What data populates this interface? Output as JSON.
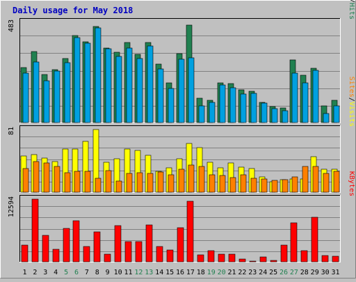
{
  "chart_data": {
    "type": "bar",
    "title": "Daily usage for May 2018",
    "categories": [
      "1",
      "2",
      "3",
      "4",
      "5",
      "6",
      "7",
      "8",
      "9",
      "10",
      "11",
      "12",
      "13",
      "14",
      "15",
      "16",
      "17",
      "18",
      "19",
      "20",
      "21",
      "22",
      "23",
      "24",
      "25",
      "26",
      "27",
      "28",
      "29",
      "30",
      "31"
    ],
    "weekend_days": [
      "5",
      "6",
      "12",
      "13",
      "19",
      "20",
      "26",
      "27"
    ],
    "colors": {
      "title": "#0000c0",
      "hits": "#208050",
      "files": "#00a0e0",
      "pages": "#00c0ff",
      "visits": "#ffff00",
      "sites": "#ff8000",
      "kbytes": "#ff0000",
      "weekend_label": "#208050",
      "weekday_label": "#000000",
      "panel_bg": "#c0c0c0"
    },
    "panels": [
      {
        "id": "hits",
        "max_label": "483",
        "ymax": 483,
        "legend": [
          {
            "text": "Pages",
            "color": "#00c0ff"
          },
          {
            "text": "Files",
            "color": "#0000ff"
          },
          {
            "text": "Hits",
            "color": "#208050"
          }
        ],
        "separator": "/",
        "series": [
          {
            "name": "Hits",
            "color": "#208050",
            "values": [
              262,
              340,
              230,
              254,
              305,
              415,
              385,
              460,
              355,
              336,
              382,
              326,
              382,
              280,
              190,
              330,
              465,
              115,
              105,
              190,
              185,
              155,
              150,
              95,
              75,
              70,
              300,
              225,
              260,
              80,
              105
            ]
          },
          {
            "name": "Files",
            "color": "#00a0e0",
            "values": [
              235,
              290,
              200,
              247,
              288,
              405,
              380,
              452,
              352,
              315,
              355,
              306,
              366,
              258,
              164,
              302,
              310,
              80,
              95,
              180,
              165,
              135,
              140,
              92,
              65,
              58,
              235,
              190,
              250,
              43,
              80
            ]
          }
        ]
      },
      {
        "id": "visits",
        "max_label": "81",
        "ymax": 81,
        "legend": [
          {
            "text": "Sites",
            "color": "#ff8000"
          },
          {
            "text": "Visits",
            "color": "#ffff00"
          }
        ],
        "separator": "/",
        "series": [
          {
            "name": "Visits",
            "color": "#ffff00",
            "values": [
              46,
              48,
              44,
              39,
              55,
              55,
              65,
              80,
              38,
              43,
              55,
              53,
              47,
              27,
              31,
              43,
              62,
              57,
              38,
              31,
              37,
              32,
              30,
              20,
              13,
              16,
              17,
              17,
              45,
              29,
              29
            ]
          },
          {
            "name": "Sites",
            "color": "#ff8000",
            "values": [
              30,
              39,
              37,
              33,
              25,
              27,
              27,
              18,
              28,
              14,
              24,
              25,
              24,
              26,
              22,
              29,
              35,
              33,
              22,
              21,
              19,
              22,
              18,
              17,
              15,
              16,
              20,
              33,
              33,
              24,
              27
            ]
          }
        ]
      },
      {
        "id": "kbytes",
        "max_label": "12594",
        "ymax": 12594,
        "legend": [
          {
            "text": "KBytes",
            "color": "#ff0000"
          }
        ],
        "separator": "",
        "series": [
          {
            "name": "KBytes",
            "color": "#ff0000",
            "values": [
              3300,
              12400,
              5200,
              2500,
              6700,
              8200,
              3100,
              6000,
              1500,
              7200,
              4000,
              4000,
              7300,
              3100,
              2300,
              6800,
              12100,
              1400,
              2200,
              1500,
              1500,
              500,
              200,
              900,
              300,
              3300,
              7800,
              2200,
              8800,
              1200,
              1100
            ]
          }
        ]
      }
    ]
  }
}
